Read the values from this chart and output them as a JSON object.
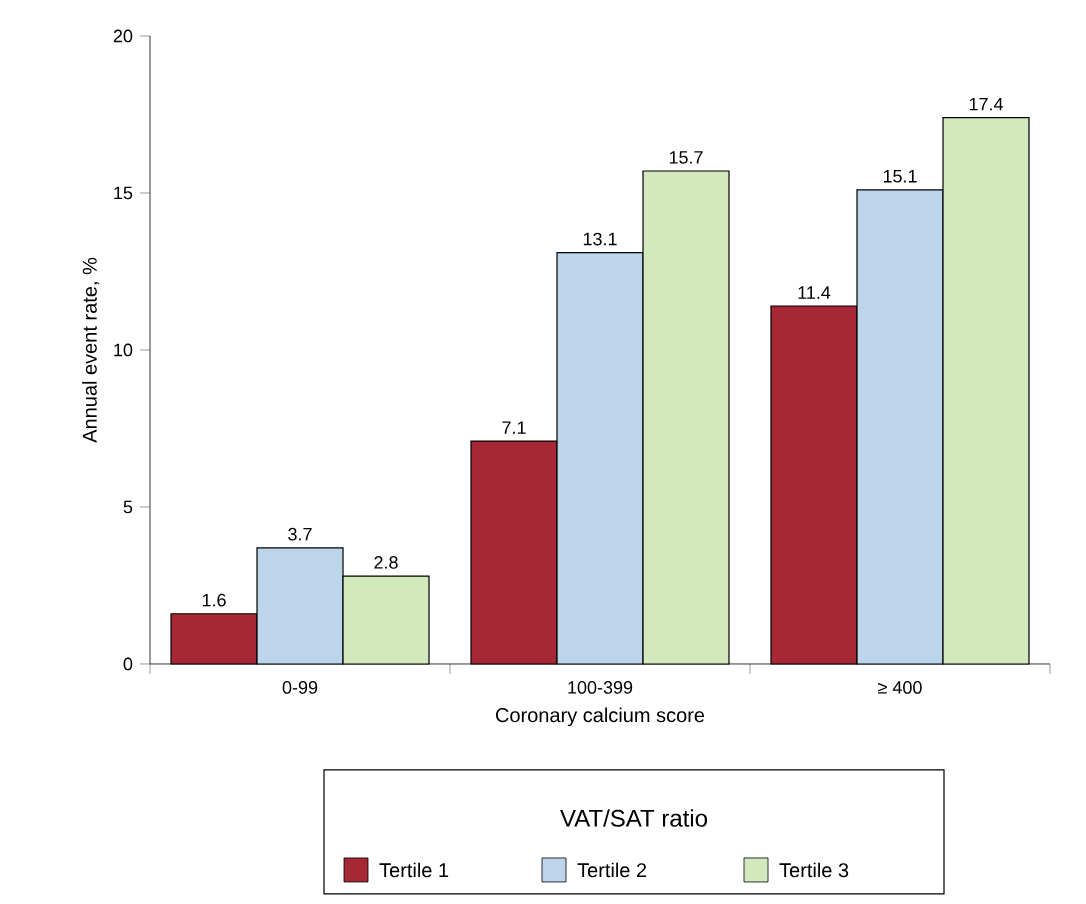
{
  "chart_data": {
    "type": "bar",
    "xlabel": "Coronary calcium score",
    "ylabel": "Annual event rate, %",
    "legend_title": "VAT/SAT ratio",
    "categories": [
      "0-99",
      "100-399",
      "≥ 400"
    ],
    "series": [
      {
        "name": "Tertile 1",
        "color": "#a52834",
        "values": [
          1.6,
          7.1,
          11.4
        ]
      },
      {
        "name": "Tertile 2",
        "color": "#bdd5ea",
        "values": [
          3.7,
          13.1,
          15.1
        ]
      },
      {
        "name": "Tertile 3",
        "color": "#d2e9bd",
        "values": [
          2.8,
          15.7,
          17.4
        ]
      }
    ],
    "ylim": [
      0,
      20
    ],
    "yticks": [
      0,
      5,
      10,
      15,
      20
    ],
    "data_labels": true,
    "legend": "bottom"
  }
}
